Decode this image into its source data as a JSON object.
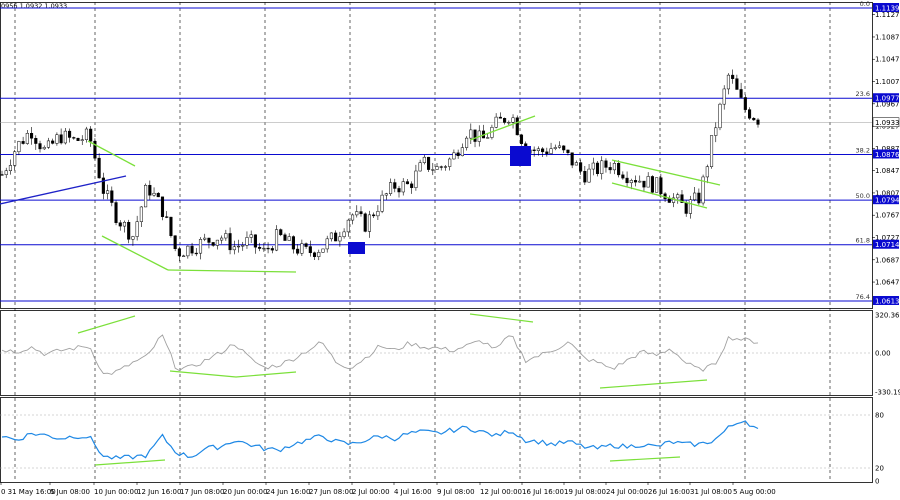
{
  "chart_data": {
    "type": "candlestick",
    "header_text": "0956 1.0932 1.0933",
    "y_ticks": [
      "1.1127",
      "1.1087",
      "1.1047",
      "1.1007",
      "1.0967",
      "1.0927",
      "1.0887",
      "1.0847",
      "1.0807",
      "1.0767",
      "1.0727",
      "1.0687",
      "1.0647"
    ],
    "price_labels": [
      {
        "price": 1.1139,
        "text": "1.1139",
        "fib": "0.0"
      },
      {
        "price": 1.0977,
        "text": "1.0977",
        "fib": "23.6"
      },
      {
        "price": 1.0933,
        "text": "1.0933",
        "fib": ""
      },
      {
        "price": 1.0876,
        "text": "1.0876",
        "fib": "38.2"
      },
      {
        "price": 1.0794,
        "text": "1.0794",
        "fib": "50.0"
      },
      {
        "price": 1.0714,
        "text": "1.0714",
        "fib": "61.8"
      },
      {
        "price": 1.0613,
        "text": "1.0613",
        "fib": "76.4"
      }
    ],
    "x_labels": [
      "0 31 May 16:00",
      "5 Jun 08:00",
      "10 Jun 00:00",
      "12 Jun 16:00",
      "17 Jun 08:00",
      "20 Jun 00:00",
      "24 Jun 16:00",
      "27 Jun 08:00",
      "2 Jul 00:00",
      "4 Jul 16:00",
      "9 Jul 08:00",
      "12 Jul 00:00",
      "16 Jul 16:00",
      "19 Jul 08:00",
      "24 Jul 00:00",
      "26 Jul 16:00",
      "31 Jul 08:00",
      "5 Aug 00:00"
    ],
    "price_path": [
      1.084,
      1.089,
      1.092,
      1.088,
      1.091,
      1.09,
      1.091,
      1.081,
      1.076,
      1.073,
      1.082,
      1.078,
      1.07,
      1.071,
      1.072,
      1.073,
      1.071,
      1.072,
      1.07,
      1.073,
      1.071,
      1.07,
      1.071,
      1.073,
      1.077,
      1.075,
      1.079,
      1.082,
      1.082,
      1.086,
      1.085,
      1.087,
      1.092,
      1.09,
      1.093,
      1.095,
      1.089,
      1.088,
      1.089,
      1.087,
      1.084,
      1.085,
      1.086,
      1.084,
      1.083,
      1.082,
      1.08,
      1.078,
      1.08,
      1.092,
      1.102,
      1.096,
      1.094
    ],
    "cci_path": [
      30,
      10,
      50,
      -10,
      20,
      40,
      60,
      -180,
      -150,
      -80,
      -30,
      150,
      -130,
      -120,
      -60,
      0,
      80,
      -40,
      -120,
      -100,
      -50,
      20,
      90,
      -80,
      -120,
      -40,
      60,
      20,
      80,
      50,
      40,
      20,
      60,
      100,
      30,
      150,
      -60,
      -20,
      30,
      90,
      -40,
      -80,
      -130,
      -60,
      10,
      -20,
      40,
      -80,
      -140,
      -100,
      130,
      110,
      90
    ],
    "cci_ticks": [
      "320.3615",
      "0.00",
      "-330.193"
    ],
    "rsi_path": [
      55,
      50,
      58,
      56,
      52,
      55,
      54,
      30,
      28,
      30,
      32,
      55,
      35,
      30,
      40,
      42,
      50,
      45,
      40,
      38,
      45,
      50,
      55,
      48,
      45,
      50,
      55,
      52,
      58,
      60,
      58,
      62,
      65,
      60,
      55,
      62,
      50,
      48,
      45,
      48,
      42,
      40,
      44,
      42,
      45,
      42,
      48,
      45,
      45,
      50,
      65,
      75,
      62
    ],
    "rsi_ticks": [
      "80",
      "20",
      "0"
    ]
  }
}
